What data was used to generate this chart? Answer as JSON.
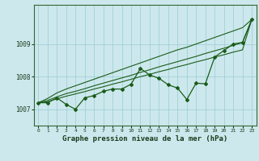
{
  "xlabel": "Graphe pression niveau de la mer (hPa)",
  "background_color": "#cce8ec",
  "grid_color": "#99ccd4",
  "line_color": "#1a5c1a",
  "x_ticks": [
    0,
    1,
    2,
    3,
    4,
    5,
    6,
    7,
    8,
    9,
    10,
    11,
    12,
    13,
    14,
    15,
    16,
    17,
    18,
    19,
    20,
    21,
    22,
    23
  ],
  "ylim": [
    1006.5,
    1010.2
  ],
  "yticks": [
    1007,
    1008,
    1009
  ],
  "main_line": [
    1007.2,
    1007.2,
    1007.35,
    1007.15,
    1007.0,
    1007.35,
    1007.42,
    1007.55,
    1007.62,
    1007.62,
    1007.77,
    1008.25,
    1008.05,
    1007.95,
    1007.75,
    1007.65,
    1007.3,
    1007.8,
    1007.78,
    1008.6,
    1008.8,
    1009.0,
    1009.05,
    1009.75
  ],
  "trend_line1": [
    1007.2,
    1007.33,
    1007.5,
    1007.62,
    1007.72,
    1007.82,
    1007.92,
    1008.02,
    1008.12,
    1008.22,
    1008.32,
    1008.42,
    1008.52,
    1008.62,
    1008.72,
    1008.82,
    1008.9,
    1009.0,
    1009.1,
    1009.2,
    1009.3,
    1009.4,
    1009.5,
    1009.75
  ],
  "trend_line2": [
    1007.2,
    1007.27,
    1007.38,
    1007.48,
    1007.55,
    1007.63,
    1007.72,
    1007.8,
    1007.88,
    1007.96,
    1008.04,
    1008.13,
    1008.21,
    1008.3,
    1008.38,
    1008.46,
    1008.54,
    1008.62,
    1008.71,
    1008.79,
    1008.87,
    1008.96,
    1009.04,
    1009.75
  ],
  "trend_line3": [
    1007.2,
    1007.23,
    1007.32,
    1007.4,
    1007.47,
    1007.54,
    1007.62,
    1007.69,
    1007.77,
    1007.84,
    1007.92,
    1008.0,
    1008.07,
    1008.15,
    1008.22,
    1008.3,
    1008.37,
    1008.45,
    1008.52,
    1008.6,
    1008.67,
    1008.75,
    1008.82,
    1009.75
  ]
}
